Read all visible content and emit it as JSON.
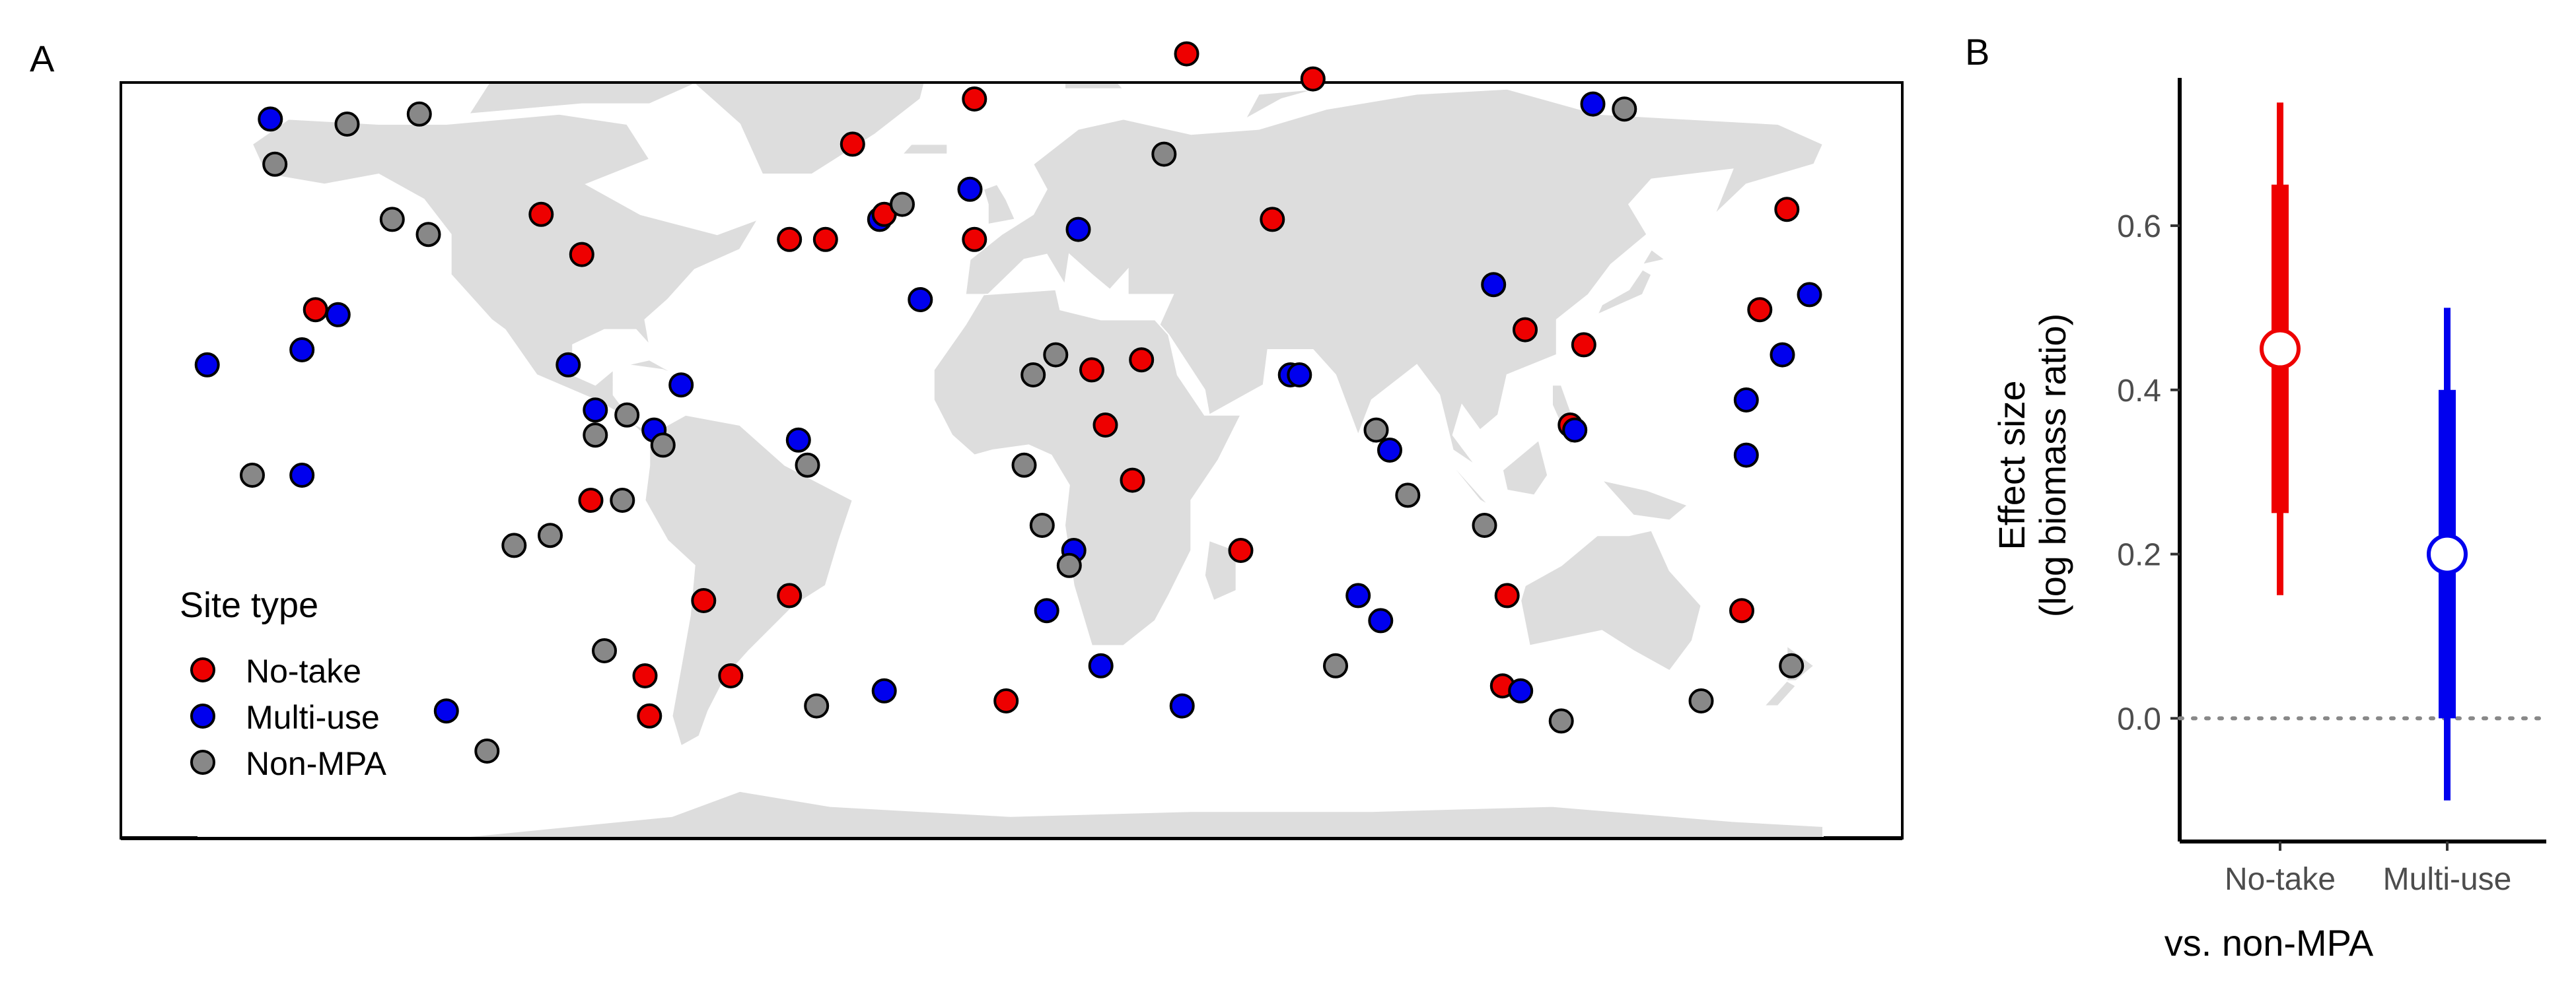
{
  "chart_data": [
    {
      "type": "scatter",
      "panel_label": "A",
      "legend": {
        "title": "Site type",
        "placement": "bottom-left",
        "entries": [
          {
            "label": "No-take",
            "color": "#ee0000"
          },
          {
            "label": "Multi-use",
            "color": "#0000ee"
          },
          {
            "label": "Non-MPA",
            "color": "#888888"
          }
        ]
      },
      "xlim": [
        -180,
        180
      ],
      "ylim": [
        -70,
        85
      ],
      "land_color": "#dddddd",
      "sites": [
        {
          "lon": -164,
          "lat": 71,
          "type": "Multi-use"
        },
        {
          "lon": -163,
          "lat": 62,
          "type": "Non-MPA"
        },
        {
          "lon": -147,
          "lat": 70,
          "type": "Non-MPA"
        },
        {
          "lon": -131,
          "lat": 72,
          "type": "Non-MPA"
        },
        {
          "lon": -137,
          "lat": 51,
          "type": "Non-MPA"
        },
        {
          "lon": -129,
          "lat": 48,
          "type": "Non-MPA"
        },
        {
          "lon": -104,
          "lat": 52,
          "type": "No-take"
        },
        {
          "lon": -95,
          "lat": 44,
          "type": "No-take"
        },
        {
          "lon": -154,
          "lat": 33,
          "type": "No-take"
        },
        {
          "lon": -149,
          "lat": 32,
          "type": "Multi-use"
        },
        {
          "lon": -157,
          "lat": 25,
          "type": "Multi-use"
        },
        {
          "lon": -178,
          "lat": 22,
          "type": "Multi-use"
        },
        {
          "lon": -98,
          "lat": 22,
          "type": "Multi-use"
        },
        {
          "lon": -92,
          "lat": 13,
          "type": "Multi-use"
        },
        {
          "lon": -92,
          "lat": 8,
          "type": "Non-MPA"
        },
        {
          "lon": -168,
          "lat": 0,
          "type": "Non-MPA"
        },
        {
          "lon": -157,
          "lat": 0,
          "type": "Multi-use"
        },
        {
          "lon": -85,
          "lat": 12,
          "type": "Non-MPA"
        },
        {
          "lon": -79,
          "lat": 9,
          "type": "Multi-use"
        },
        {
          "lon": -77,
          "lat": 6,
          "type": "Non-MPA"
        },
        {
          "lon": -73,
          "lat": 18,
          "type": "Multi-use"
        },
        {
          "lon": -93,
          "lat": -5,
          "type": "No-take"
        },
        {
          "lon": -86,
          "lat": -5,
          "type": "Non-MPA"
        },
        {
          "lon": -110,
          "lat": -14,
          "type": "Non-MPA"
        },
        {
          "lon": -102,
          "lat": -12,
          "type": "Non-MPA"
        },
        {
          "lon": -47,
          "lat": 7,
          "type": "Multi-use"
        },
        {
          "lon": -45,
          "lat": 2,
          "type": "Non-MPA"
        },
        {
          "lon": -68,
          "lat": -25,
          "type": "No-take"
        },
        {
          "lon": -49,
          "lat": -24,
          "type": "No-take"
        },
        {
          "lon": -90,
          "lat": -35,
          "type": "Non-MPA"
        },
        {
          "lon": -81,
          "lat": -40,
          "type": "No-take"
        },
        {
          "lon": -62,
          "lat": -40,
          "type": "No-take"
        },
        {
          "lon": -80,
          "lat": -48,
          "type": "No-take"
        },
        {
          "lon": -125,
          "lat": -47,
          "type": "Multi-use"
        },
        {
          "lon": -116,
          "lat": -55,
          "type": "Non-MPA"
        },
        {
          "lon": -43,
          "lat": -46,
          "type": "Non-MPA"
        },
        {
          "lon": -28,
          "lat": -43,
          "type": "Multi-use"
        },
        {
          "lon": -49,
          "lat": 47,
          "type": "No-take"
        },
        {
          "lon": -41,
          "lat": 47,
          "type": "No-take"
        },
        {
          "lon": -35,
          "lat": 66,
          "type": "No-take"
        },
        {
          "lon": -29,
          "lat": 51,
          "type": "Multi-use"
        },
        {
          "lon": -28,
          "lat": 52,
          "type": "No-take"
        },
        {
          "lon": -24,
          "lat": 54,
          "type": "Non-MPA"
        },
        {
          "lon": -20,
          "lat": 35,
          "type": "Multi-use"
        },
        {
          "lon": -9,
          "lat": 57,
          "type": "Multi-use"
        },
        {
          "lon": -8,
          "lat": 75,
          "type": "No-take"
        },
        {
          "lon": -8,
          "lat": 47,
          "type": "No-take"
        },
        {
          "lon": 39,
          "lat": 84,
          "type": "No-take"
        },
        {
          "lon": 67,
          "lat": 79,
          "type": "No-take"
        },
        {
          "lon": 34,
          "lat": 64,
          "type": "Non-MPA"
        },
        {
          "lon": 15,
          "lat": 49,
          "type": "Multi-use"
        },
        {
          "lon": 58,
          "lat": 51,
          "type": "No-take"
        },
        {
          "lon": 107,
          "lat": 38,
          "type": "Multi-use"
        },
        {
          "lon": 129,
          "lat": 74,
          "type": "Multi-use"
        },
        {
          "lon": 136,
          "lat": 73,
          "type": "Non-MPA"
        },
        {
          "lon": 172,
          "lat": 53,
          "type": "No-take"
        },
        {
          "lon": 177,
          "lat": 36,
          "type": "Multi-use"
        },
        {
          "lon": 166,
          "lat": 33,
          "type": "No-take"
        },
        {
          "lon": 171,
          "lat": 24,
          "type": "Multi-use"
        },
        {
          "lon": 114,
          "lat": 29,
          "type": "No-take"
        },
        {
          "lon": 127,
          "lat": 26,
          "type": "No-take"
        },
        {
          "lon": 124,
          "lat": 10,
          "type": "No-take"
        },
        {
          "lon": 125,
          "lat": 9,
          "type": "Multi-use"
        },
        {
          "lon": 163,
          "lat": 15,
          "type": "Multi-use"
        },
        {
          "lon": 163,
          "lat": 4,
          "type": "Multi-use"
        },
        {
          "lon": 10,
          "lat": 24,
          "type": "Non-MPA"
        },
        {
          "lon": 5,
          "lat": 20,
          "type": "Non-MPA"
        },
        {
          "lon": 18,
          "lat": 21,
          "type": "No-take"
        },
        {
          "lon": 29,
          "lat": 23,
          "type": "No-take"
        },
        {
          "lon": 21,
          "lat": 10,
          "type": "No-take"
        },
        {
          "lon": 27,
          "lat": -1,
          "type": "No-take"
        },
        {
          "lon": 3,
          "lat": 2,
          "type": "Non-MPA"
        },
        {
          "lon": 7,
          "lat": -10,
          "type": "Non-MPA"
        },
        {
          "lon": 14,
          "lat": -15,
          "type": "Multi-use"
        },
        {
          "lon": 13,
          "lat": -18,
          "type": "Non-MPA"
        },
        {
          "lon": 62,
          "lat": 20,
          "type": "Multi-use"
        },
        {
          "lon": 64,
          "lat": 20,
          "type": "Multi-use"
        },
        {
          "lon": 81,
          "lat": 9,
          "type": "Non-MPA"
        },
        {
          "lon": 84,
          "lat": 5,
          "type": "Multi-use"
        },
        {
          "lon": 88,
          "lat": -4,
          "type": "Non-MPA"
        },
        {
          "lon": 105,
          "lat": -10,
          "type": "Non-MPA"
        },
        {
          "lon": 51,
          "lat": -15,
          "type": "No-take"
        },
        {
          "lon": 77,
          "lat": -24,
          "type": "Multi-use"
        },
        {
          "lon": 82,
          "lat": -29,
          "type": "Multi-use"
        },
        {
          "lon": 72,
          "lat": -38,
          "type": "Non-MPA"
        },
        {
          "lon": 110,
          "lat": -24,
          "type": "No-take"
        },
        {
          "lon": 8,
          "lat": -27,
          "type": "Multi-use"
        },
        {
          "lon": 20,
          "lat": -38,
          "type": "Multi-use"
        },
        {
          "lon": -1,
          "lat": -45,
          "type": "No-take"
        },
        {
          "lon": 38,
          "lat": -46,
          "type": "Multi-use"
        },
        {
          "lon": 109,
          "lat": -42,
          "type": "No-take"
        },
        {
          "lon": 113,
          "lat": -43,
          "type": "Multi-use"
        },
        {
          "lon": 122,
          "lat": -49,
          "type": "Non-MPA"
        },
        {
          "lon": 153,
          "lat": -45,
          "type": "Non-MPA"
        },
        {
          "lon": 162,
          "lat": -27,
          "type": "No-take"
        },
        {
          "lon": 173,
          "lat": -38,
          "type": "Non-MPA"
        }
      ]
    },
    {
      "type": "pointrange",
      "panel_label": "B",
      "ylabel_line1": "Effect size",
      "ylabel_line2": "(log biomass ratio)",
      "xlabel": "vs. non-MPA",
      "ylim": [
        -0.15,
        0.78
      ],
      "yticks": [
        0.0,
        0.2,
        0.4,
        0.6
      ],
      "ytick_labels": [
        "0.0",
        "0.2",
        "0.4",
        "0.6"
      ],
      "reference_line": 0.0,
      "categories": [
        "No-take",
        "Multi-use"
      ],
      "series": [
        {
          "category": "No-take",
          "color": "#ee0000",
          "estimate": 0.45,
          "inner": [
            0.25,
            0.65
          ],
          "outer": [
            0.15,
            0.75
          ]
        },
        {
          "category": "Multi-use",
          "color": "#0000ee",
          "estimate": 0.2,
          "inner": [
            0.0,
            0.4
          ],
          "outer": [
            -0.1,
            0.5
          ]
        }
      ]
    }
  ]
}
